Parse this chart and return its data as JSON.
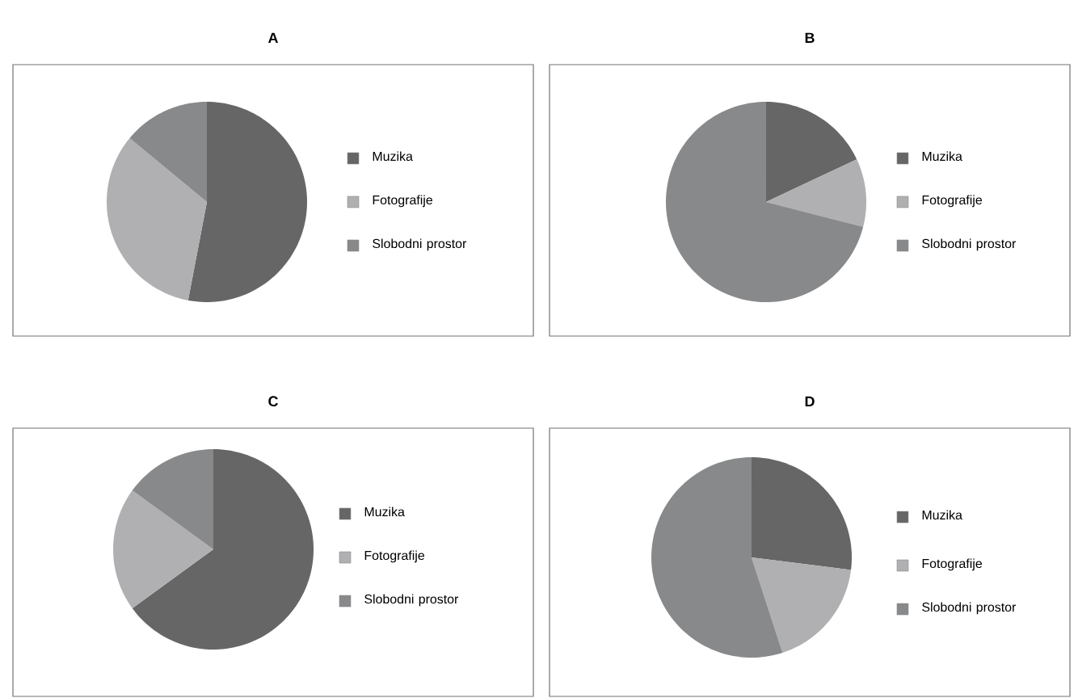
{
  "chart_data": [
    {
      "type": "pie",
      "title": "A",
      "categories": [
        "Muzika",
        "Fotografije",
        "Slobodni prostor"
      ],
      "values": [
        53,
        33,
        14
      ],
      "colors": [
        "#666666",
        "#b0b0b2",
        "#88898b"
      ],
      "legend": "right"
    },
    {
      "type": "pie",
      "title": "B",
      "categories": [
        "Muzika",
        "Fotografije",
        "Slobodni prostor"
      ],
      "values": [
        18,
        11,
        71
      ],
      "colors": [
        "#666666",
        "#b0b0b2",
        "#88898b"
      ],
      "legend": "right"
    },
    {
      "type": "pie",
      "title": "C",
      "categories": [
        "Muzika",
        "Fotografije",
        "Slobodni prostor"
      ],
      "values": [
        65,
        20,
        15
      ],
      "colors": [
        "#666666",
        "#b0b0b2",
        "#88898b"
      ],
      "legend": "right"
    },
    {
      "type": "pie",
      "title": "D",
      "categories": [
        "Muzika",
        "Fotografije",
        "Slobodni prostor"
      ],
      "values": [
        27,
        18,
        55
      ],
      "colors": [
        "#666666",
        "#b0b0b2",
        "#88898b"
      ],
      "legend": "right"
    }
  ]
}
